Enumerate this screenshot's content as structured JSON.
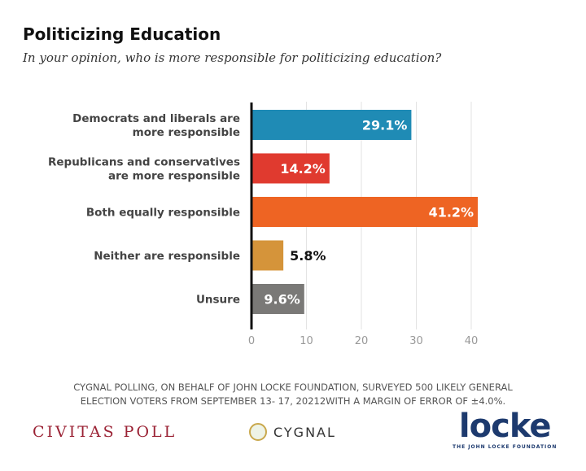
{
  "chart_data": {
    "type": "bar",
    "orientation": "horizontal",
    "title": "Politicizing Education",
    "subtitle": "In your opinion, who is more responsible for politicizing education?",
    "categories": [
      [
        "Democrats and liberals are",
        "more responsible"
      ],
      [
        "Republicans and conservatives",
        "are more responsible"
      ],
      [
        "Both equally responsible"
      ],
      [
        "Neither are responsible"
      ],
      [
        "Unsure"
      ]
    ],
    "values": [
      29.1,
      14.2,
      41.2,
      5.8,
      9.6
    ],
    "data_labels": [
      "29.1%",
      "14.2%",
      "41.2%",
      "5.8%",
      "9.6%"
    ],
    "colors": [
      "#1f8bb5",
      "#e03a2f",
      "#ee6423",
      "#d5943a",
      "#7a7977"
    ],
    "xlim": [
      0,
      42
    ],
    "xticks": [
      "0",
      "10",
      "20",
      "30",
      "40"
    ],
    "grid": true
  },
  "footer": {
    "note_line1": "CYGNAL POLLING, ON BEHALF OF JOHN LOCKE FOUNDATION, SURVEYED 500 LIKELY GENERAL",
    "note_line2": "ELECTION VOTERS FROM SEPTEMBER 13- 17, 20212WITH A MARGIN OF ERROR OF ±4.0%.",
    "civitas": "CIVITAS POLL",
    "cygnal": "CYGNAL",
    "locke": "locke",
    "locke_sub": "THE JOHN LOCKE FOUNDATION"
  }
}
